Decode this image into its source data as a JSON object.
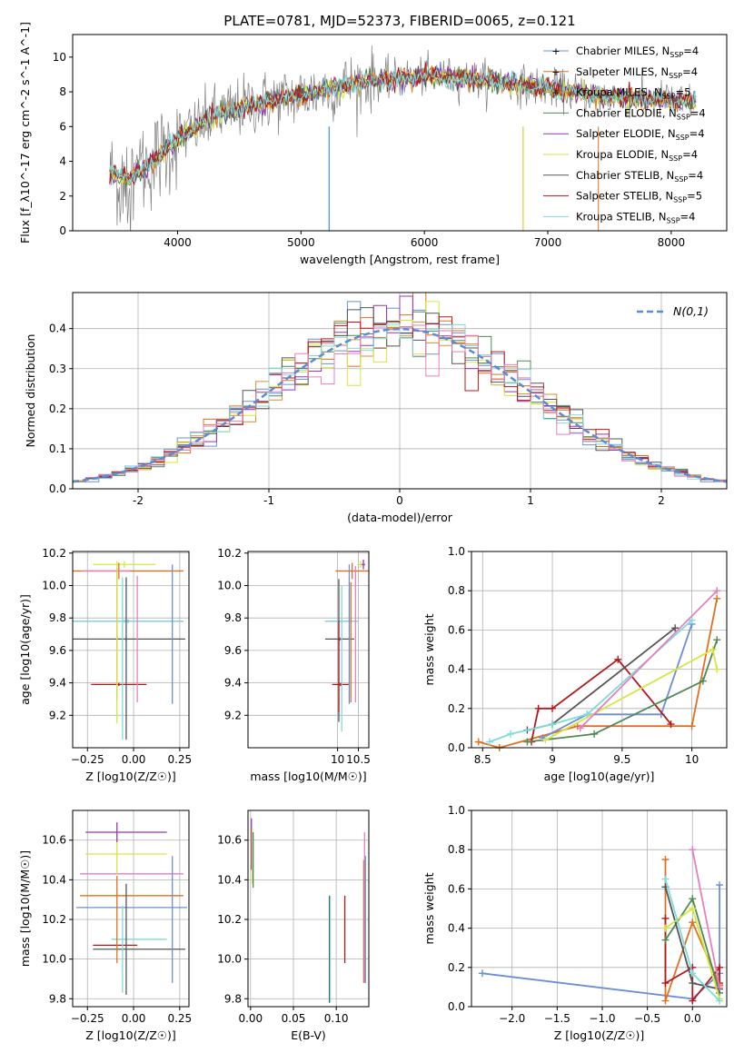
{
  "title": "PLATE=0781, MJD=52373, FIBERID=0065, z=0.121",
  "colors": {
    "Chabrier MILES": "#6b8fd6",
    "Salpeter MILES": "#e07020",
    "Kroupa MILES": "#e08a30",
    "Chabrier ELODIE": "#4f8a55",
    "Salpeter ELODIE": "#9b35b5",
    "Kroupa ELODIE": "#d6e640",
    "Chabrier STELIB": "#555555",
    "Salpeter STELIB": "#b5181c",
    "Kroupa STELIB": "#7fdada",
    "pink": "#e67fbf",
    "normal": "#5b8bd6"
  },
  "chart_data": [
    {
      "type": "line",
      "id": "spectrum",
      "xlabel": "wavelength [Angstrom, rest frame]",
      "ylabel": "Flux [f_λ10^-17 erg cm^-2 s^-1 A^-1]",
      "xlim": [
        3150,
        8450
      ],
      "ylim": [
        0,
        11.3
      ],
      "xticks": [
        4000,
        5000,
        6000,
        7000,
        8000
      ],
      "yticks": [
        0,
        2,
        4,
        6,
        8,
        10
      ],
      "legend_position": "upper right",
      "continuum_knots": [
        [
          3500,
          3.2
        ],
        [
          3600,
          3.0
        ],
        [
          3800,
          4.0
        ],
        [
          4000,
          5.3
        ],
        [
          4300,
          6.6
        ],
        [
          4600,
          7.3
        ],
        [
          5000,
          7.8
        ],
        [
          5500,
          8.6
        ],
        [
          6000,
          8.9
        ],
        [
          6500,
          8.7
        ],
        [
          7000,
          8.2
        ],
        [
          7500,
          7.7
        ],
        [
          8000,
          7.5
        ],
        [
          8200,
          7.4
        ]
      ],
      "series": [
        {
          "name": "Chabrier MILES",
          "nssp": "4"
        },
        {
          "name": "Salpeter MILES",
          "nssp": "4"
        },
        {
          "name": "Kroupa MILES",
          "nssp": "5"
        },
        {
          "name": "Chabrier ELODIE",
          "nssp": "4"
        },
        {
          "name": "Salpeter ELODIE",
          "nssp": "4"
        },
        {
          "name": "Kroupa ELODIE",
          "nssp": "4"
        },
        {
          "name": "Chabrier STELIB",
          "nssp": "4"
        },
        {
          "name": "Salpeter STELIB",
          "nssp": "5"
        },
        {
          "name": "Kroupa STELIB",
          "nssp": "4"
        }
      ]
    },
    {
      "type": "area",
      "id": "residual-histogram",
      "xlabel": "(data-model)/error",
      "ylabel": "Normed distribution",
      "xlim": [
        -2.5,
        2.5
      ],
      "ylim": [
        0,
        0.49
      ],
      "xticks": [
        -2,
        -1,
        0,
        1,
        2
      ],
      "yticks": [
        0.0,
        0.1,
        0.2,
        0.3,
        0.4
      ],
      "bin_width": 0.1,
      "legend": "N(0,1)",
      "legend_position": "upper right",
      "series_colors_from": "colors"
    },
    {
      "type": "scatter",
      "id": "age-vs-Z",
      "xlabel": "Z [log10(Z/Z☉)]",
      "ylabel": "age [log10(age/yr)]",
      "xlim": [
        -0.33,
        0.3
      ],
      "ylim": [
        9.0,
        10.21
      ],
      "xticks": [
        -0.25,
        0.0,
        0.25
      ],
      "xticklabels": [
        "−0.25",
        "0.00",
        "0.25"
      ],
      "yticks": [
        9.2,
        9.4,
        9.6,
        9.8,
        10.0,
        10.2
      ],
      "points": [
        {
          "series": "Kroupa ELODIE",
          "x": -0.05,
          "y": 10.13,
          "xerr": 0.17,
          "yerr": 0.02
        },
        {
          "series": "Salpeter MILES",
          "x": -0.08,
          "y": 10.09,
          "xerr": 0.35,
          "yerr": 0.05
        },
        {
          "series": "pink",
          "x": -0.15,
          "y": 10.09,
          "xerr": 0.13,
          "yerr": 0.0
        },
        {
          "series": "Chabrier MILES",
          "x": -0.03,
          "y": 9.78,
          "xerr": 0.3,
          "yerr": 0.01
        },
        {
          "series": "Kroupa STELIB",
          "x": -0.05,
          "y": 9.78,
          "xerr": 0.32,
          "yerr": 0.01
        },
        {
          "series": "Chabrier STELIB",
          "x": -0.04,
          "y": 9.67,
          "xerr": 0.32,
          "yerr": 0.01
        },
        {
          "series": "Salpeter STELIB",
          "x": -0.08,
          "y": 9.39,
          "xerr": 0.15,
          "yerr": 0.01
        },
        {
          "series": "Salpeter MILES",
          "x": -0.09,
          "y": 9.7,
          "xerr": 0.0,
          "yerr": 0.41
        },
        {
          "series": "Chabrier MILES",
          "x": 0.21,
          "y": 9.7,
          "xerr": 0.0,
          "yerr": 0.43
        },
        {
          "series": "pink",
          "x": 0.02,
          "y": 9.67,
          "xerr": 0.0,
          "yerr": 0.39
        },
        {
          "series": "Chabrier STELIB",
          "x": -0.04,
          "y": 9.55,
          "xerr": 0.0,
          "yerr": 0.5
        },
        {
          "series": "Kroupa STELIB",
          "x": -0.06,
          "y": 9.55,
          "xerr": 0.0,
          "yerr": 0.5
        },
        {
          "series": "Kroupa ELODIE",
          "x": -0.09,
          "y": 9.65,
          "xerr": 0.0,
          "yerr": 0.5
        }
      ]
    },
    {
      "type": "scatter",
      "id": "age-vs-mass",
      "xlabel": "mass [log10(M/M☉)]",
      "ylabel": "",
      "xlim": [
        7.85,
        10.75
      ],
      "ylim": [
        9.0,
        10.21
      ],
      "xticks": [
        10.0,
        10.5
      ],
      "yticks": [
        9.2,
        9.4,
        9.6,
        9.8,
        10.0,
        10.2
      ],
      "points": [
        {
          "series": "Kroupa ELODIE",
          "x": 10.55,
          "y": 10.13,
          "xerr": 0.08,
          "yerr": 0.02
        },
        {
          "series": "Salpeter ELODIE",
          "x": 10.62,
          "y": 10.13,
          "xerr": 0.04,
          "yerr": 0.03
        },
        {
          "series": "Salpeter MILES",
          "x": 10.35,
          "y": 10.09,
          "xerr": 0.4,
          "yerr": 0.05
        },
        {
          "series": "Chabrier MILES",
          "x": 10.1,
          "y": 9.78,
          "xerr": 0.4,
          "yerr": 0.01
        },
        {
          "series": "Kroupa STELIB",
          "x": 10.1,
          "y": 9.78,
          "xerr": 0.4,
          "yerr": 0.01
        },
        {
          "series": "Chabrier STELIB",
          "x": 10.05,
          "y": 9.67,
          "xerr": 0.35,
          "yerr": 0.01
        },
        {
          "series": "Salpeter STELIB",
          "x": 10.07,
          "y": 9.39,
          "xerr": 0.2,
          "yerr": 0.01
        },
        {
          "series": "Chabrier STELIB",
          "x": 10.03,
          "y": 9.6,
          "xerr": 0.0,
          "yerr": 0.44
        },
        {
          "series": "Salpeter STELIB",
          "x": 10.03,
          "y": 9.5,
          "xerr": 0.0,
          "yerr": 0.28
        },
        {
          "series": "Chabrier MILES",
          "x": 10.28,
          "y": 9.7,
          "xerr": 0.0,
          "yerr": 0.43
        },
        {
          "series": "Salpeter MILES",
          "x": 10.32,
          "y": 9.65,
          "xerr": 0.0,
          "yerr": 0.37
        },
        {
          "series": "pink",
          "x": 10.43,
          "y": 9.7,
          "xerr": 0.0,
          "yerr": 0.42
        },
        {
          "series": "Kroupa STELIB",
          "x": 10.1,
          "y": 9.55,
          "xerr": 0.0,
          "yerr": 0.45
        }
      ]
    },
    {
      "type": "line",
      "id": "massweight-vs-age",
      "xlabel": "age [log10(age/yr)]",
      "ylabel": "mass weight",
      "xlim": [
        8.42,
        10.25
      ],
      "ylim": [
        0,
        1.0
      ],
      "xticks": [
        8.5,
        9.0,
        9.5,
        10.0
      ],
      "yticks": [
        0.0,
        0.2,
        0.4,
        0.6,
        0.8,
        1.0
      ],
      "series": [
        {
          "name": "Salpeter MILES",
          "x": [
            8.47,
            8.62,
            9.18,
            10.0,
            10.18
          ],
          "y": [
            0.03,
            0.0,
            0.11,
            0.11,
            0.76
          ]
        },
        {
          "name": "Chabrier MILES",
          "x": [
            8.93,
            9.25,
            9.78,
            10.0
          ],
          "y": [
            0.05,
            0.17,
            0.17,
            0.63
          ]
        },
        {
          "name": "Salpeter STELIB",
          "x": [
            8.85,
            8.9,
            9.0,
            9.47,
            9.85
          ],
          "y": [
            0.03,
            0.2,
            0.2,
            0.45,
            0.12
          ]
        },
        {
          "name": "Chabrier ELODIE",
          "x": [
            8.82,
            9.3,
            10.08,
            10.18
          ],
          "y": [
            0.03,
            0.07,
            0.34,
            0.55
          ]
        },
        {
          "name": "Chabrier STELIB",
          "x": [
            8.82,
            9.0,
            9.88
          ],
          "y": [
            0.09,
            0.12,
            0.61
          ]
        },
        {
          "name": "Kroupa ELODIE",
          "x": [
            8.95,
            10.15,
            10.18
          ],
          "y": [
            0.04,
            0.5,
            0.4
          ]
        },
        {
          "name": "Kroupa STELIB",
          "x": [
            8.55,
            8.7,
            9.0,
            9.25,
            10.0
          ],
          "y": [
            0.03,
            0.07,
            0.12,
            0.17,
            0.65
          ]
        },
        {
          "name": "pink",
          "x": [
            9.2,
            10.18
          ],
          "y": [
            0.1,
            0.8
          ]
        }
      ]
    },
    {
      "type": "scatter",
      "id": "mass-vs-Z",
      "xlabel": "Z [log10(Z/Z☉)]",
      "ylabel": "mass [log10(M/M☉)]",
      "xlim": [
        -0.33,
        0.3
      ],
      "ylim": [
        9.76,
        10.75
      ],
      "xticks": [
        -0.25,
        0.0,
        0.25
      ],
      "xticklabels": [
        "−0.25",
        "0.00",
        "0.25"
      ],
      "yticks": [
        9.8,
        10.0,
        10.2,
        10.4,
        10.6
      ],
      "points": [
        {
          "series": "Salpeter ELODIE",
          "x": -0.04,
          "y": 10.64,
          "xerr": 0.22,
          "yerr": 0.0
        },
        {
          "series": "Kroupa ELODIE",
          "x": -0.04,
          "y": 10.53,
          "xerr": 0.22,
          "yerr": 0.0
        },
        {
          "series": "pink",
          "x": -0.01,
          "y": 10.43,
          "xerr": 0.28,
          "yerr": 0.0
        },
        {
          "series": "Salpeter MILES",
          "x": -0.01,
          "y": 10.32,
          "xerr": 0.28,
          "yerr": 0.0
        },
        {
          "series": "Chabrier MILES",
          "x": -0.01,
          "y": 10.26,
          "xerr": 0.3,
          "yerr": 0.0
        },
        {
          "series": "Kroupa STELIB",
          "x": 0.03,
          "y": 10.1,
          "xerr": 0.15,
          "yerr": 0.0
        },
        {
          "series": "Salpeter STELIB",
          "x": -0.1,
          "y": 10.07,
          "xerr": 0.12,
          "yerr": 0.0
        },
        {
          "series": "Chabrier STELIB",
          "x": 0.03,
          "y": 10.05,
          "xerr": 0.25,
          "yerr": 0.0
        },
        {
          "series": "Kroupa ELODIE",
          "x": -0.09,
          "y": 10.53,
          "xerr": 0.0,
          "yerr": 0.1
        },
        {
          "series": "Salpeter ELODIE",
          "x": -0.09,
          "y": 10.64,
          "xerr": 0.0,
          "yerr": 0.05
        },
        {
          "series": "Chabrier MILES",
          "x": 0.21,
          "y": 10.2,
          "xerr": 0.0,
          "yerr": 0.32
        },
        {
          "series": "Salpeter MILES",
          "x": -0.09,
          "y": 10.2,
          "xerr": 0.0,
          "yerr": 0.22
        },
        {
          "series": "Chabrier STELIB",
          "x": -0.04,
          "y": 10.1,
          "xerr": 0.0,
          "yerr": 0.28
        },
        {
          "series": "Kroupa STELIB",
          "x": -0.06,
          "y": 10.05,
          "xerr": 0.0,
          "yerr": 0.22
        }
      ]
    },
    {
      "type": "scatter",
      "id": "mass-vs-ebv",
      "xlabel": "E(B-V)",
      "ylabel": "",
      "xlim": [
        -0.003,
        0.138
      ],
      "ylim": [
        9.76,
        10.75
      ],
      "xticks": [
        0.0,
        0.05,
        0.1
      ],
      "xticklabels": [
        "0.00",
        "0.05",
        "0.10"
      ],
      "yticks": [
        9.8,
        10.0,
        10.2,
        10.4,
        10.6
      ],
      "points": [
        {
          "series": "Salpeter ELODIE",
          "x": 0.001,
          "y": 10.58,
          "xerr": 0.0,
          "yerr": 0.13
        },
        {
          "series": "Kroupa ELODIE",
          "x": 0.002,
          "y": 10.52,
          "xerr": 0.0,
          "yerr": 0.14
        },
        {
          "series": "Chabrier ELODIE",
          "x": 0.003,
          "y": 10.5,
          "xerr": 0.0,
          "yerr": 0.14
        },
        {
          "series": "Chabrier STELIB",
          "x": 0.092,
          "y": 10.05,
          "xerr": 0.0,
          "yerr": 0.27
        },
        {
          "series": "Kroupa STELIB",
          "x": 0.093,
          "y": 10.05,
          "xerr": 0.0,
          "yerr": 0.27
        },
        {
          "series": "Salpeter STELIB",
          "x": 0.11,
          "y": 10.15,
          "xerr": 0.0,
          "yerr": 0.17
        },
        {
          "series": "Salpeter MILES",
          "x": 0.132,
          "y": 10.19,
          "xerr": 0.0,
          "yerr": 0.31
        },
        {
          "series": "pink",
          "x": 0.133,
          "y": 10.26,
          "xerr": 0.0,
          "yerr": 0.38
        },
        {
          "series": "Chabrier MILES",
          "x": 0.134,
          "y": 10.2,
          "xerr": 0.0,
          "yerr": 0.32
        }
      ]
    },
    {
      "type": "line",
      "id": "massweight-vs-Z",
      "xlabel": "Z [log10(Z/Z☉)]",
      "ylabel": "mass weight",
      "xlim": [
        -2.45,
        0.38
      ],
      "ylim": [
        0,
        1.0
      ],
      "xticks": [
        -2.0,
        -1.5,
        -1.0,
        -0.5,
        0.0
      ],
      "xticklabels": [
        "−2.0",
        "−1.5",
        "−1.0",
        "−0.5",
        "0.0"
      ],
      "yticks": [
        0.0,
        0.2,
        0.4,
        0.6,
        0.8,
        1.0
      ],
      "series": [
        {
          "name": "Chabrier MILES",
          "x": [
            -2.33,
            0.0,
            0.3,
            0.3
          ],
          "y": [
            0.17,
            0.04,
            0.17,
            0.62
          ]
        },
        {
          "name": "Salpeter MILES",
          "x": [
            -0.3,
            -0.3,
            0.0,
            0.3
          ],
          "y": [
            0.75,
            0.03,
            0.43,
            0.11
          ]
        },
        {
          "name": "Salpeter STELIB",
          "x": [
            -0.3,
            -0.3,
            0.0,
            0.0,
            0.3,
            0.3
          ],
          "y": [
            0.45,
            0.12,
            0.2,
            0.03,
            0.2,
            0.12
          ]
        },
        {
          "name": "Chabrier ELODIE",
          "x": [
            -0.3,
            0.0,
            0.3
          ],
          "y": [
            0.34,
            0.55,
            0.07
          ]
        },
        {
          "name": "Chabrier STELIB",
          "x": [
            -0.3,
            0.0,
            0.3
          ],
          "y": [
            0.61,
            0.12,
            0.09
          ]
        },
        {
          "name": "Kroupa ELODIE",
          "x": [
            -0.3,
            0.0,
            0.3
          ],
          "y": [
            0.4,
            0.5,
            0.04
          ]
        },
        {
          "name": "Kroupa STELIB",
          "x": [
            -0.3,
            0.0,
            0.3
          ],
          "y": [
            0.65,
            0.17,
            0.03
          ]
        },
        {
          "name": "pink",
          "x": [
            0.0,
            0.3
          ],
          "y": [
            0.8,
            0.1
          ]
        }
      ]
    }
  ]
}
